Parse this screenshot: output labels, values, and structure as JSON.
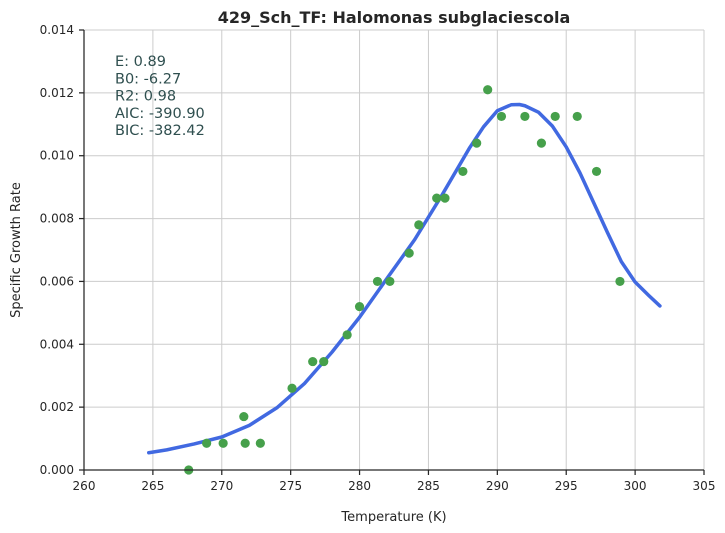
{
  "chart_data": {
    "type": "scatter",
    "title": "429_Sch_TF: Halomonas subglaciescola",
    "xlabel": "Temperature (K)",
    "ylabel": "Specific Growth Rate",
    "xlim": [
      260,
      305
    ],
    "ylim": [
      0,
      0.014
    ],
    "x_ticks": [
      "260",
      "265",
      "270",
      "275",
      "280",
      "285",
      "290",
      "295",
      "300",
      "305"
    ],
    "y_ticks": [
      "0.000",
      "0.002",
      "0.004",
      "0.006",
      "0.008",
      "0.010",
      "0.012",
      "0.014"
    ],
    "grid": true,
    "annotations": [
      "E:  0.89",
      "B0:  -6.27",
      "R2:  0.98",
      "AIC: -390.90",
      "BIC: -382.42"
    ],
    "colors": {
      "points": "#46a04b",
      "fit": "#4169e1"
    },
    "series": [
      {
        "type": "scatter",
        "x": [
          267.6,
          268.9,
          270.1,
          271.6,
          271.7,
          272.8,
          275.1,
          276.6,
          277.4,
          279.1,
          280.0,
          281.3,
          282.2,
          283.6,
          284.3,
          285.6,
          286.2,
          287.5,
          288.5,
          289.3,
          290.3,
          292.0,
          293.2,
          294.2,
          295.8,
          297.2,
          298.9
        ],
        "y": [
          0.0,
          0.00085,
          0.00085,
          0.0017,
          0.00085,
          0.00085,
          0.0026,
          0.00345,
          0.00345,
          0.0043,
          0.0052,
          0.006,
          0.006,
          0.0069,
          0.0078,
          0.00865,
          0.00865,
          0.0095,
          0.0104,
          0.0121,
          0.01125,
          0.01125,
          0.0104,
          0.01125,
          0.01125,
          0.0095,
          0.006
        ]
      },
      {
        "type": "line",
        "x": [
          264.7,
          266,
          268,
          270,
          272,
          274,
          276,
          278,
          280,
          282,
          284,
          286,
          288,
          289,
          290,
          291,
          291.6,
          292,
          293,
          294,
          295,
          296,
          297,
          298,
          299,
          300,
          301,
          301.8
        ],
        "y": [
          0.00055,
          0.00064,
          0.00083,
          0.00105,
          0.00142,
          0.00198,
          0.00275,
          0.00375,
          0.00486,
          0.0061,
          0.00733,
          0.00876,
          0.01026,
          0.01092,
          0.01143,
          0.01162,
          0.01163,
          0.01159,
          0.01138,
          0.01094,
          0.01028,
          0.00945,
          0.0085,
          0.00755,
          0.00663,
          0.00598,
          0.00555,
          0.00522
        ]
      }
    ]
  }
}
